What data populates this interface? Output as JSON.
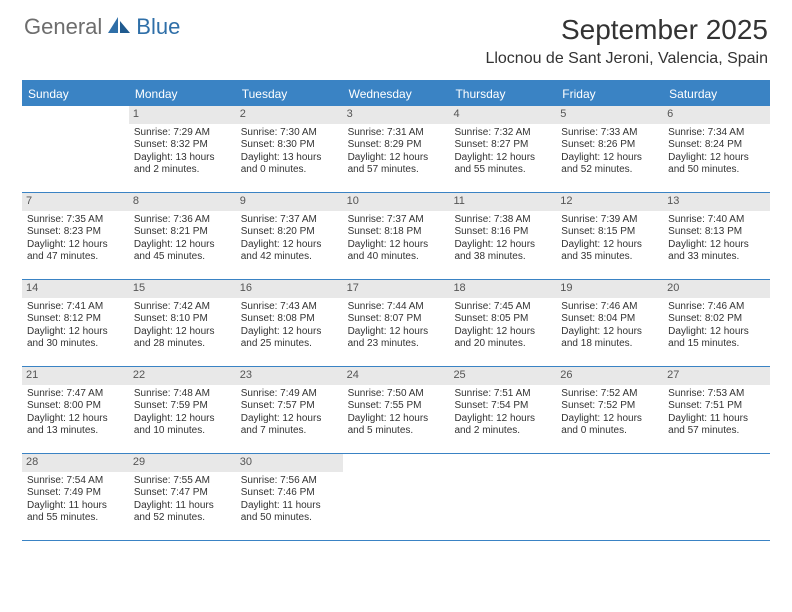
{
  "logo": {
    "general": "General",
    "blue": "Blue"
  },
  "title": "September 2025",
  "location": "Llocnou de Sant Jeroni, Valencia, Spain",
  "day_headers": [
    "Sunday",
    "Monday",
    "Tuesday",
    "Wednesday",
    "Thursday",
    "Friday",
    "Saturday"
  ],
  "colors": {
    "header_bg": "#3a83c4",
    "header_text": "#ffffff",
    "daynum_bg": "#e8e8e8",
    "text": "#333333",
    "logo_gray": "#6d6d6d",
    "logo_blue": "#2f6fa8"
  },
  "weeks": [
    [
      {
        "num": "",
        "sunrise": "",
        "sunset": "",
        "daylight1": "",
        "daylight2": ""
      },
      {
        "num": "1",
        "sunrise": "Sunrise: 7:29 AM",
        "sunset": "Sunset: 8:32 PM",
        "daylight1": "Daylight: 13 hours",
        "daylight2": "and 2 minutes."
      },
      {
        "num": "2",
        "sunrise": "Sunrise: 7:30 AM",
        "sunset": "Sunset: 8:30 PM",
        "daylight1": "Daylight: 13 hours",
        "daylight2": "and 0 minutes."
      },
      {
        "num": "3",
        "sunrise": "Sunrise: 7:31 AM",
        "sunset": "Sunset: 8:29 PM",
        "daylight1": "Daylight: 12 hours",
        "daylight2": "and 57 minutes."
      },
      {
        "num": "4",
        "sunrise": "Sunrise: 7:32 AM",
        "sunset": "Sunset: 8:27 PM",
        "daylight1": "Daylight: 12 hours",
        "daylight2": "and 55 minutes."
      },
      {
        "num": "5",
        "sunrise": "Sunrise: 7:33 AM",
        "sunset": "Sunset: 8:26 PM",
        "daylight1": "Daylight: 12 hours",
        "daylight2": "and 52 minutes."
      },
      {
        "num": "6",
        "sunrise": "Sunrise: 7:34 AM",
        "sunset": "Sunset: 8:24 PM",
        "daylight1": "Daylight: 12 hours",
        "daylight2": "and 50 minutes."
      }
    ],
    [
      {
        "num": "7",
        "sunrise": "Sunrise: 7:35 AM",
        "sunset": "Sunset: 8:23 PM",
        "daylight1": "Daylight: 12 hours",
        "daylight2": "and 47 minutes."
      },
      {
        "num": "8",
        "sunrise": "Sunrise: 7:36 AM",
        "sunset": "Sunset: 8:21 PM",
        "daylight1": "Daylight: 12 hours",
        "daylight2": "and 45 minutes."
      },
      {
        "num": "9",
        "sunrise": "Sunrise: 7:37 AM",
        "sunset": "Sunset: 8:20 PM",
        "daylight1": "Daylight: 12 hours",
        "daylight2": "and 42 minutes."
      },
      {
        "num": "10",
        "sunrise": "Sunrise: 7:37 AM",
        "sunset": "Sunset: 8:18 PM",
        "daylight1": "Daylight: 12 hours",
        "daylight2": "and 40 minutes."
      },
      {
        "num": "11",
        "sunrise": "Sunrise: 7:38 AM",
        "sunset": "Sunset: 8:16 PM",
        "daylight1": "Daylight: 12 hours",
        "daylight2": "and 38 minutes."
      },
      {
        "num": "12",
        "sunrise": "Sunrise: 7:39 AM",
        "sunset": "Sunset: 8:15 PM",
        "daylight1": "Daylight: 12 hours",
        "daylight2": "and 35 minutes."
      },
      {
        "num": "13",
        "sunrise": "Sunrise: 7:40 AM",
        "sunset": "Sunset: 8:13 PM",
        "daylight1": "Daylight: 12 hours",
        "daylight2": "and 33 minutes."
      }
    ],
    [
      {
        "num": "14",
        "sunrise": "Sunrise: 7:41 AM",
        "sunset": "Sunset: 8:12 PM",
        "daylight1": "Daylight: 12 hours",
        "daylight2": "and 30 minutes."
      },
      {
        "num": "15",
        "sunrise": "Sunrise: 7:42 AM",
        "sunset": "Sunset: 8:10 PM",
        "daylight1": "Daylight: 12 hours",
        "daylight2": "and 28 minutes."
      },
      {
        "num": "16",
        "sunrise": "Sunrise: 7:43 AM",
        "sunset": "Sunset: 8:08 PM",
        "daylight1": "Daylight: 12 hours",
        "daylight2": "and 25 minutes."
      },
      {
        "num": "17",
        "sunrise": "Sunrise: 7:44 AM",
        "sunset": "Sunset: 8:07 PM",
        "daylight1": "Daylight: 12 hours",
        "daylight2": "and 23 minutes."
      },
      {
        "num": "18",
        "sunrise": "Sunrise: 7:45 AM",
        "sunset": "Sunset: 8:05 PM",
        "daylight1": "Daylight: 12 hours",
        "daylight2": "and 20 minutes."
      },
      {
        "num": "19",
        "sunrise": "Sunrise: 7:46 AM",
        "sunset": "Sunset: 8:04 PM",
        "daylight1": "Daylight: 12 hours",
        "daylight2": "and 18 minutes."
      },
      {
        "num": "20",
        "sunrise": "Sunrise: 7:46 AM",
        "sunset": "Sunset: 8:02 PM",
        "daylight1": "Daylight: 12 hours",
        "daylight2": "and 15 minutes."
      }
    ],
    [
      {
        "num": "21",
        "sunrise": "Sunrise: 7:47 AM",
        "sunset": "Sunset: 8:00 PM",
        "daylight1": "Daylight: 12 hours",
        "daylight2": "and 13 minutes."
      },
      {
        "num": "22",
        "sunrise": "Sunrise: 7:48 AM",
        "sunset": "Sunset: 7:59 PM",
        "daylight1": "Daylight: 12 hours",
        "daylight2": "and 10 minutes."
      },
      {
        "num": "23",
        "sunrise": "Sunrise: 7:49 AM",
        "sunset": "Sunset: 7:57 PM",
        "daylight1": "Daylight: 12 hours",
        "daylight2": "and 7 minutes."
      },
      {
        "num": "24",
        "sunrise": "Sunrise: 7:50 AM",
        "sunset": "Sunset: 7:55 PM",
        "daylight1": "Daylight: 12 hours",
        "daylight2": "and 5 minutes."
      },
      {
        "num": "25",
        "sunrise": "Sunrise: 7:51 AM",
        "sunset": "Sunset: 7:54 PM",
        "daylight1": "Daylight: 12 hours",
        "daylight2": "and 2 minutes."
      },
      {
        "num": "26",
        "sunrise": "Sunrise: 7:52 AM",
        "sunset": "Sunset: 7:52 PM",
        "daylight1": "Daylight: 12 hours",
        "daylight2": "and 0 minutes."
      },
      {
        "num": "27",
        "sunrise": "Sunrise: 7:53 AM",
        "sunset": "Sunset: 7:51 PM",
        "daylight1": "Daylight: 11 hours",
        "daylight2": "and 57 minutes."
      }
    ],
    [
      {
        "num": "28",
        "sunrise": "Sunrise: 7:54 AM",
        "sunset": "Sunset: 7:49 PM",
        "daylight1": "Daylight: 11 hours",
        "daylight2": "and 55 minutes."
      },
      {
        "num": "29",
        "sunrise": "Sunrise: 7:55 AM",
        "sunset": "Sunset: 7:47 PM",
        "daylight1": "Daylight: 11 hours",
        "daylight2": "and 52 minutes."
      },
      {
        "num": "30",
        "sunrise": "Sunrise: 7:56 AM",
        "sunset": "Sunset: 7:46 PM",
        "daylight1": "Daylight: 11 hours",
        "daylight2": "and 50 minutes."
      },
      {
        "num": "",
        "sunrise": "",
        "sunset": "",
        "daylight1": "",
        "daylight2": ""
      },
      {
        "num": "",
        "sunrise": "",
        "sunset": "",
        "daylight1": "",
        "daylight2": ""
      },
      {
        "num": "",
        "sunrise": "",
        "sunset": "",
        "daylight1": "",
        "daylight2": ""
      },
      {
        "num": "",
        "sunrise": "",
        "sunset": "",
        "daylight1": "",
        "daylight2": ""
      }
    ]
  ]
}
